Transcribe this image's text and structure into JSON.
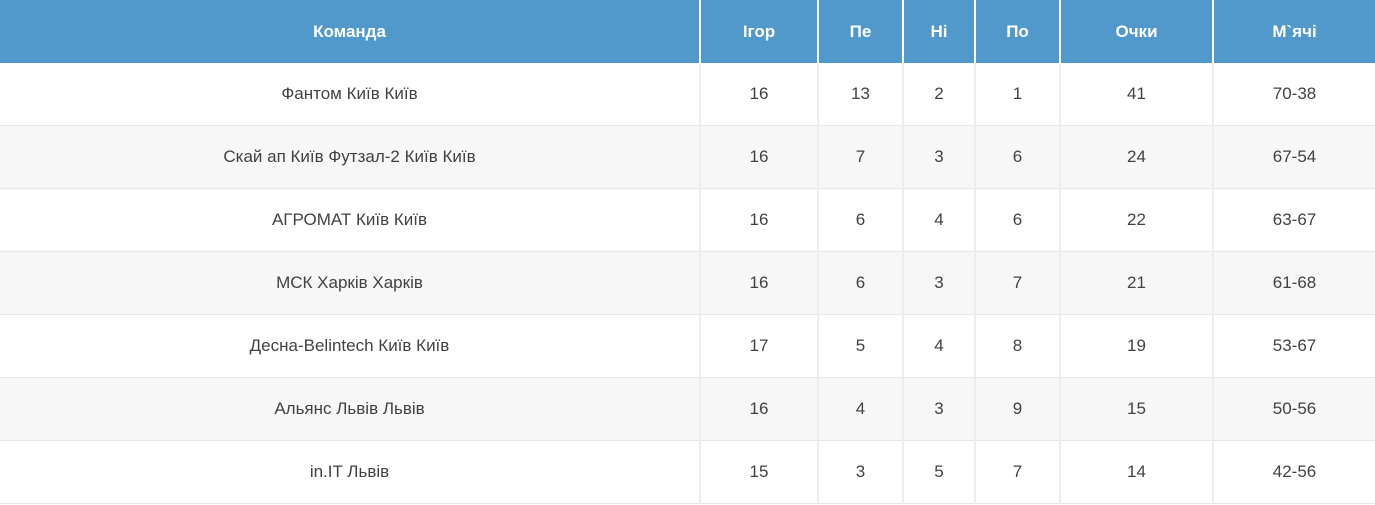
{
  "table": {
    "columns": [
      {
        "key": "team",
        "label": "Команда"
      },
      {
        "key": "games",
        "label": "Ігор"
      },
      {
        "key": "wins",
        "label": "Пе"
      },
      {
        "key": "draws",
        "label": "Ні"
      },
      {
        "key": "losses",
        "label": "По"
      },
      {
        "key": "points",
        "label": "Очки"
      },
      {
        "key": "goals",
        "label": "М`ячі"
      }
    ],
    "rows": [
      {
        "team": "Фантом Київ Київ",
        "games": "16",
        "wins": "13",
        "draws": "2",
        "losses": "1",
        "points": "41",
        "goals": "70-38"
      },
      {
        "team": "Скай ап Київ Футзал-2 Київ Київ",
        "games": "16",
        "wins": "7",
        "draws": "3",
        "losses": "6",
        "points": "24",
        "goals": "67-54"
      },
      {
        "team": "АГРОМАТ Київ Київ",
        "games": "16",
        "wins": "6",
        "draws": "4",
        "losses": "6",
        "points": "22",
        "goals": "63-67"
      },
      {
        "team": "МСК Харків Харків",
        "games": "16",
        "wins": "6",
        "draws": "3",
        "losses": "7",
        "points": "21",
        "goals": "61-68"
      },
      {
        "team": "Десна-Belintech Київ Київ",
        "games": "17",
        "wins": "5",
        "draws": "4",
        "losses": "8",
        "points": "19",
        "goals": "53-67"
      },
      {
        "team": "Альянс Львів Львів",
        "games": "16",
        "wins": "4",
        "draws": "3",
        "losses": "9",
        "points": "15",
        "goals": "50-56"
      },
      {
        "team": "in.IT Львів",
        "games": "15",
        "wins": "3",
        "draws": "5",
        "losses": "7",
        "points": "14",
        "goals": "42-56"
      }
    ]
  },
  "colors": {
    "header_bg": "#5299cb",
    "header_text": "#ffffff",
    "row_stripe": "#f7f7f7",
    "border": "#e7e7e7",
    "cell_text": "#424242"
  }
}
